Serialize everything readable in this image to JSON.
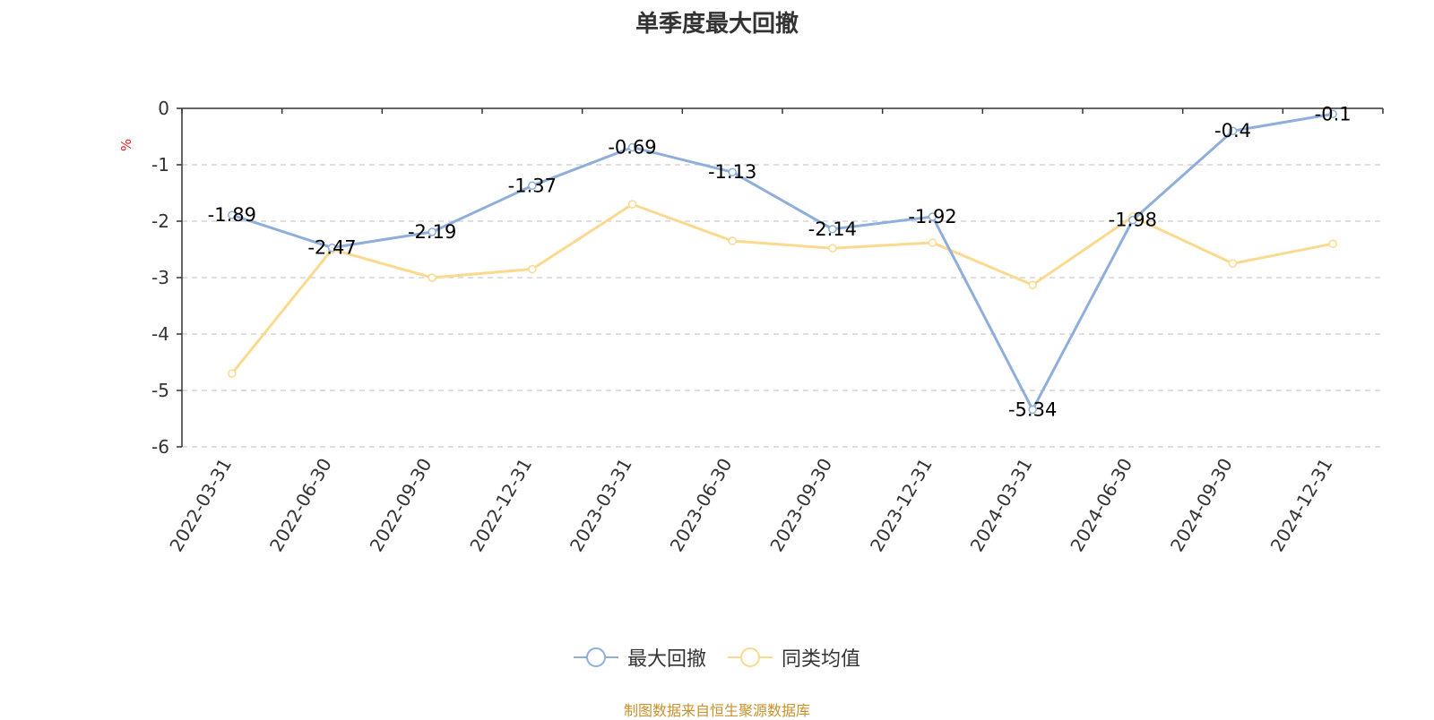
{
  "chart_data": {
    "type": "line",
    "title": "单季度最大回撤",
    "ylabel": "%",
    "categories": [
      "2022-03-31",
      "2022-06-30",
      "2022-09-30",
      "2022-12-31",
      "2023-03-31",
      "2023-06-30",
      "2023-09-30",
      "2023-12-31",
      "2024-03-31",
      "2024-06-30",
      "2024-09-30",
      "2024-12-31"
    ],
    "series": [
      {
        "name": "最大回撤",
        "color": "#8eaedb",
        "show_labels": true,
        "values": [
          -1.89,
          -2.47,
          -2.19,
          -1.37,
          -0.69,
          -1.13,
          -2.14,
          -1.92,
          -5.34,
          -1.98,
          -0.4,
          -0.1
        ],
        "labels": [
          "-1.89",
          "-2.47",
          "-2.19",
          "-1.37",
          "-0.69",
          "-1.13",
          "-2.14",
          "-1.92",
          "-5.34",
          "-1.98",
          "-0.4",
          "-0.1"
        ]
      },
      {
        "name": "同类均值",
        "color": "#fbd98f",
        "show_labels": false,
        "values": [
          -4.7,
          -2.5,
          -3.0,
          -2.85,
          -1.7,
          -2.35,
          -2.48,
          -2.38,
          -3.13,
          -1.92,
          -2.75,
          -2.4
        ]
      }
    ],
    "ylim": [
      -6,
      0
    ],
    "yticks": [
      "0",
      "-1",
      "-2",
      "-3",
      "-4",
      "-5",
      "-6"
    ],
    "grid": true,
    "legend_position": "bottom"
  },
  "source_note": "制图数据来自恒生聚源数据库",
  "colors": {
    "unit": "#e02020",
    "source": "#c8912c",
    "axis": "#333333",
    "grid": "#cccccc"
  }
}
